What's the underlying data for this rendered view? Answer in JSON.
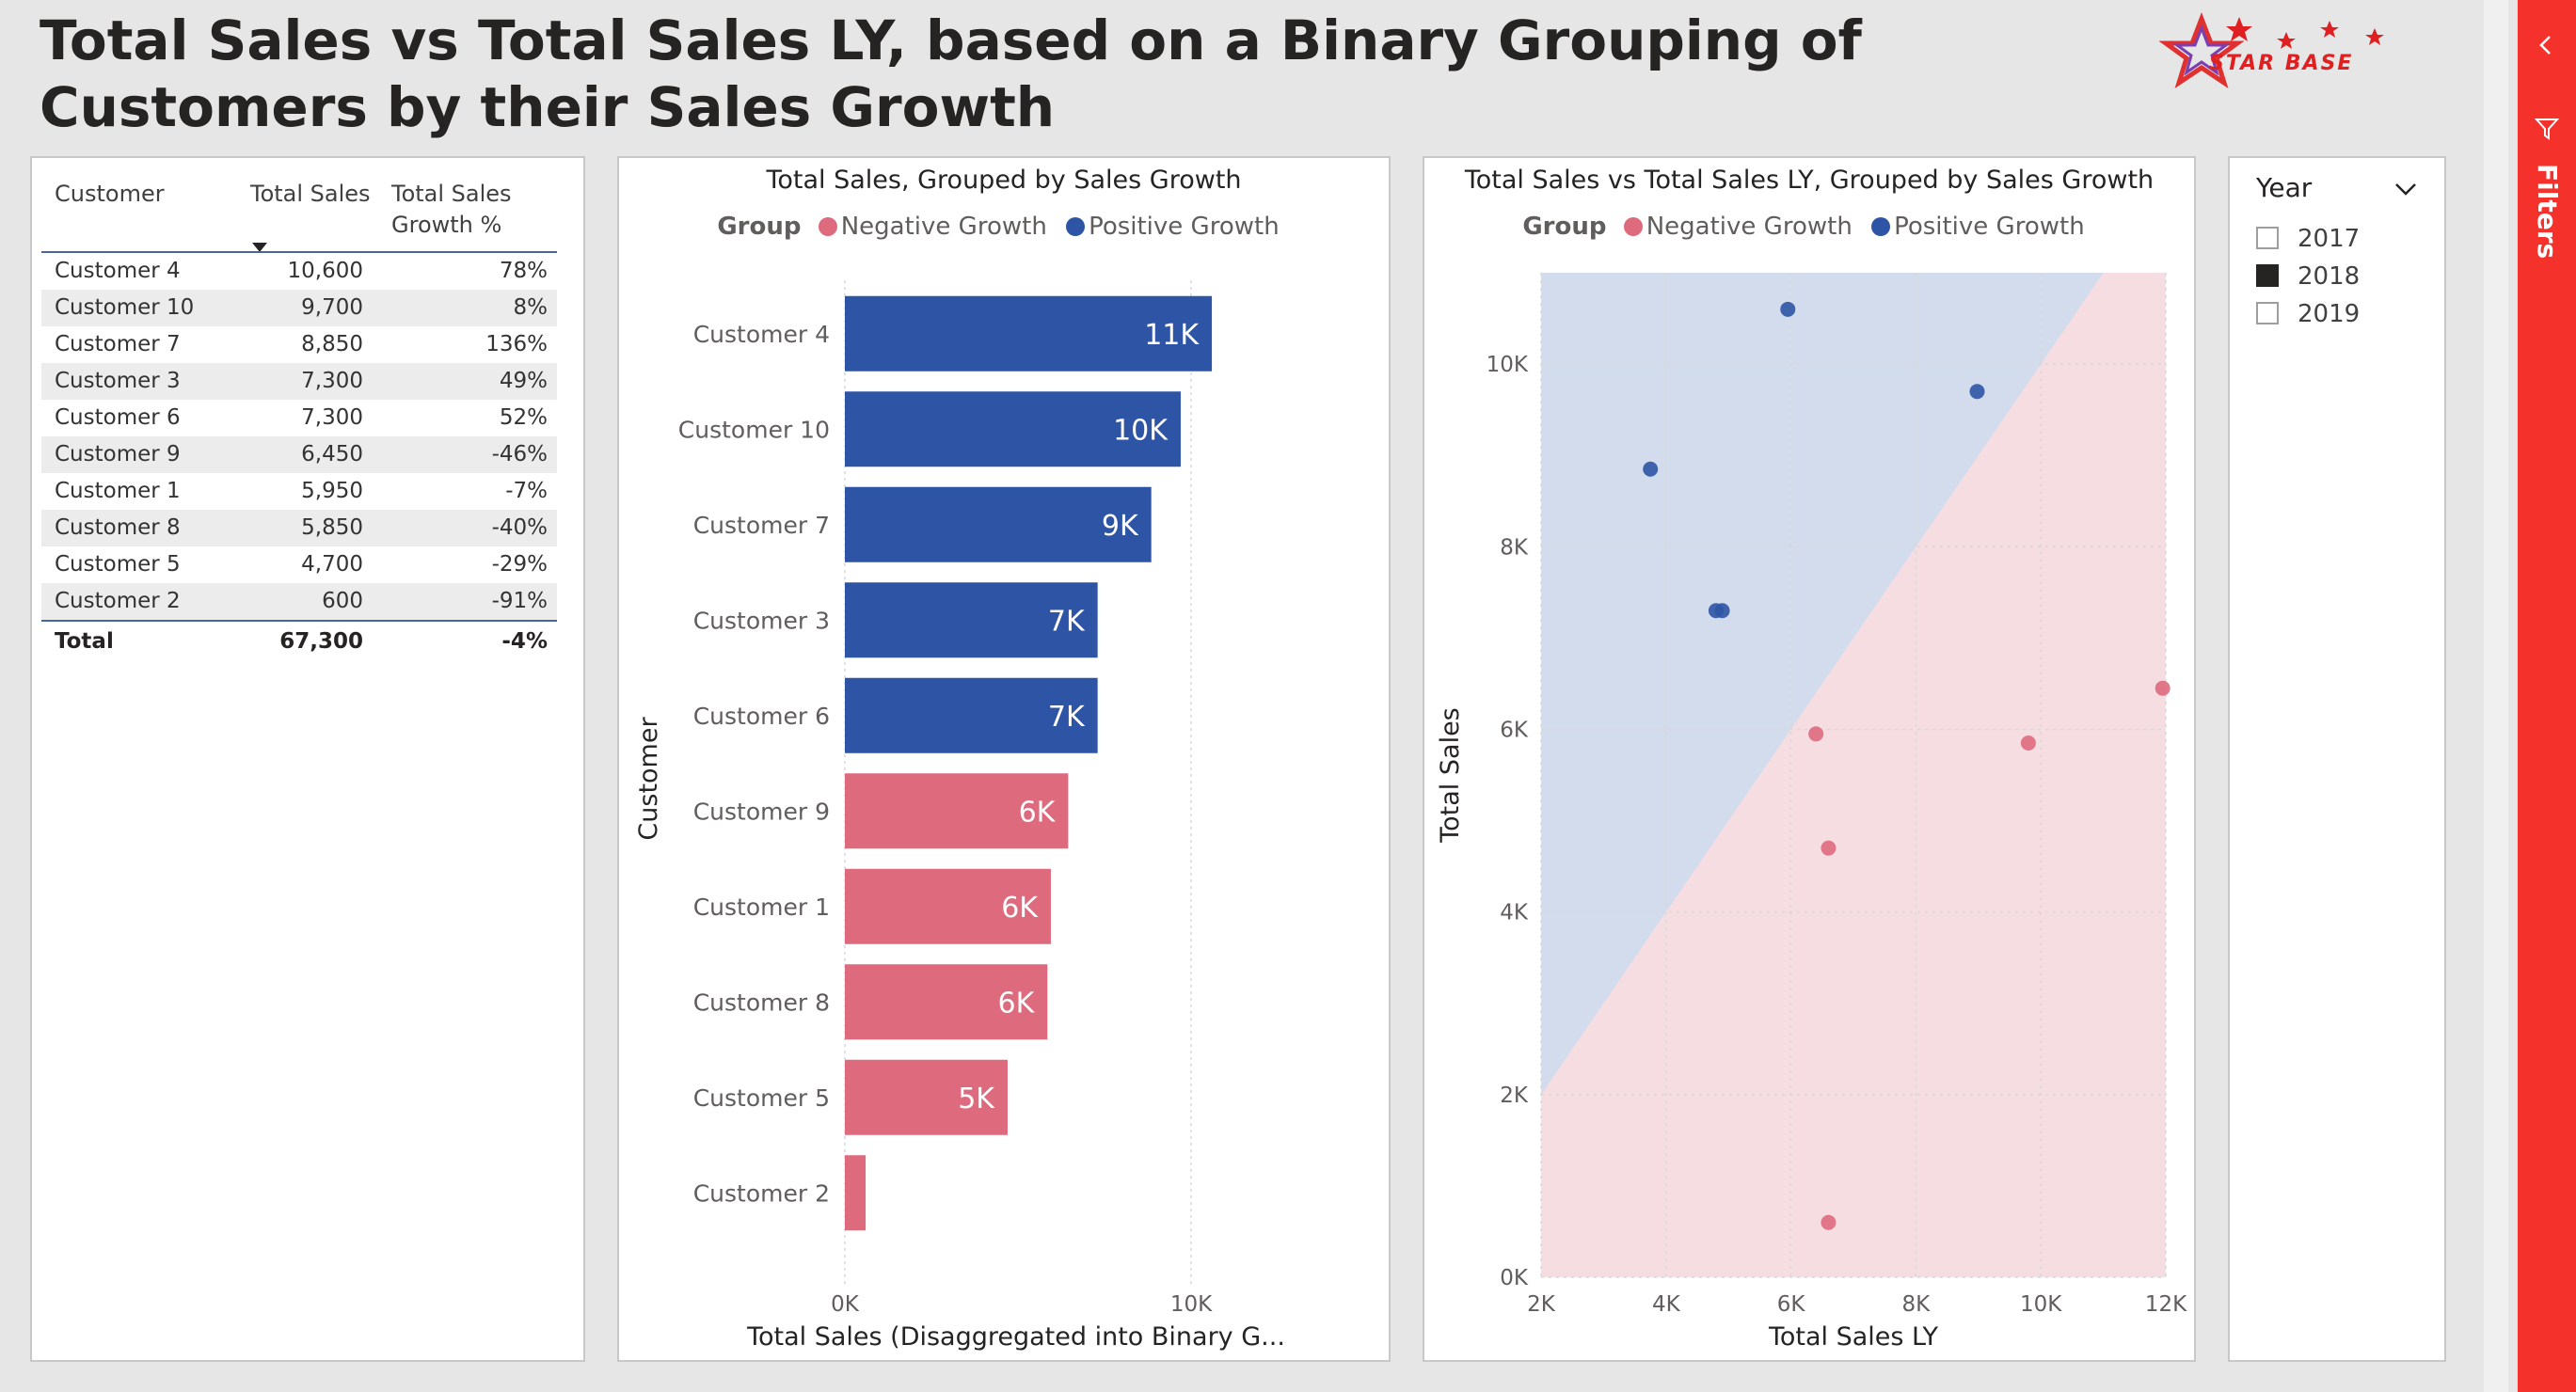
{
  "page_title": "Total Sales vs Total Sales LY, based on a Binary Grouping of Customers by their Sales Growth",
  "logo_text": "STAR BASE",
  "colors": {
    "positive": "#2e55a5",
    "negative": "#de6a7e",
    "positive_area": "#d2dcec",
    "negative_area": "#f6dde2",
    "filters_pane": "#f5312c"
  },
  "table": {
    "headers": {
      "customer": "Customer",
      "total_sales": "Total Sales",
      "growth_line1": "Total Sales",
      "growth_line2": "Growth %"
    },
    "sort_icon": "sort-descending-icon",
    "rows": [
      {
        "customer": "Customer 4",
        "total_sales": "10,600",
        "growth": "78%"
      },
      {
        "customer": "Customer 10",
        "total_sales": "9,700",
        "growth": "8%"
      },
      {
        "customer": "Customer 7",
        "total_sales": "8,850",
        "growth": "136%"
      },
      {
        "customer": "Customer 3",
        "total_sales": "7,300",
        "growth": "49%"
      },
      {
        "customer": "Customer 6",
        "total_sales": "7,300",
        "growth": "52%"
      },
      {
        "customer": "Customer 9",
        "total_sales": "6,450",
        "growth": "-46%"
      },
      {
        "customer": "Customer 1",
        "total_sales": "5,950",
        "growth": "-7%"
      },
      {
        "customer": "Customer 8",
        "total_sales": "5,850",
        "growth": "-40%"
      },
      {
        "customer": "Customer 5",
        "total_sales": "4,700",
        "growth": "-29%"
      },
      {
        "customer": "Customer 2",
        "total_sales": "600",
        "growth": "-91%"
      }
    ],
    "total": {
      "label": "Total",
      "total_sales": "67,300",
      "growth": "-4%"
    }
  },
  "bar_chart": {
    "title": "Total Sales, Grouped by Sales Growth",
    "legend_title": "Group",
    "legend_negative": "Negative Growth",
    "legend_positive": "Positive Growth"
  },
  "scatter_chart": {
    "title": "Total Sales vs Total Sales LY, Grouped by Sales Growth",
    "legend_title": "Group",
    "legend_negative": "Negative Growth",
    "legend_positive": "Positive Growth"
  },
  "chart_data": [
    {
      "type": "bar",
      "orientation": "horizontal",
      "title": "Total Sales, Grouped by Sales Growth",
      "xlabel": "Total Sales (Disaggregated into Binary G...",
      "ylabel": "Customer",
      "xlim": [
        0,
        11000
      ],
      "x_ticks": [
        "0K",
        "10K"
      ],
      "categories": [
        "Customer 4",
        "Customer 10",
        "Customer 7",
        "Customer 3",
        "Customer 6",
        "Customer 9",
        "Customer 1",
        "Customer 8",
        "Customer 5",
        "Customer 2"
      ],
      "values": [
        10600,
        9700,
        8850,
        7300,
        7300,
        6450,
        5950,
        5850,
        4700,
        600
      ],
      "groups": [
        "Positive Growth",
        "Positive Growth",
        "Positive Growth",
        "Positive Growth",
        "Positive Growth",
        "Negative Growth",
        "Negative Growth",
        "Negative Growth",
        "Negative Growth",
        "Negative Growth"
      ],
      "data_labels": [
        "11K",
        "10K",
        "9K",
        "7K",
        "7K",
        "6K",
        "6K",
        "6K",
        "5K",
        ""
      ],
      "legend": [
        "Negative Growth",
        "Positive Growth"
      ],
      "legend_position": "top"
    },
    {
      "type": "scatter",
      "title": "Total Sales vs Total Sales LY, Grouped by Sales Growth",
      "xlabel": "Total Sales LY",
      "ylabel": "Total Sales",
      "xlim": [
        2000,
        12000
      ],
      "ylim": [
        0,
        11000
      ],
      "x_ticks": [
        "2K",
        "4K",
        "6K",
        "8K",
        "10K",
        "12K"
      ],
      "y_ticks": [
        "0K",
        "2K",
        "4K",
        "6K",
        "8K",
        "10K"
      ],
      "grid": true,
      "shaded_regions": "diagonal y = x split: above = Positive Growth, below = Negative Growth",
      "series": [
        {
          "name": "Positive Growth",
          "points": [
            [
              5950,
              10600
            ],
            [
              8980,
              9700
            ],
            [
              3750,
              8850
            ],
            [
              4900,
              7300
            ],
            [
              4800,
              7300
            ]
          ]
        },
        {
          "name": "Negative Growth",
          "points": [
            [
              11950,
              6450
            ],
            [
              6400,
              5950
            ],
            [
              9800,
              5850
            ],
            [
              6600,
              4700
            ],
            [
              6600,
              600
            ]
          ]
        }
      ],
      "legend": [
        "Negative Growth",
        "Positive Growth"
      ],
      "legend_position": "top"
    }
  ],
  "slicer": {
    "title": "Year",
    "options": [
      {
        "label": "2017",
        "checked": false
      },
      {
        "label": "2018",
        "checked": true
      },
      {
        "label": "2019",
        "checked": false
      }
    ]
  },
  "filters": {
    "label": "Filters"
  }
}
